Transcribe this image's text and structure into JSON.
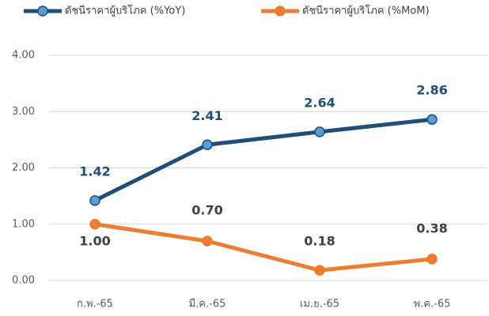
{
  "chart_data": {
    "type": "line",
    "categories": [
      "ก.พ.-65",
      "มี.ค.-65",
      "เม.ย.-65",
      "พ.ค.-65"
    ],
    "series": [
      {
        "name": "ดัชนีราคาผู้บริโภค (%YoY)",
        "color": "#1f4e79",
        "marker_color": "#5b9bd5",
        "values": [
          1.42,
          2.41,
          2.64,
          2.86
        ],
        "value_labels": [
          "1.42",
          "2.41",
          "2.64",
          "2.86"
        ]
      },
      {
        "name": "ดัชนีราคาผู้บริโภค (%MoM)",
        "color": "#ed7d31",
        "marker_color": "#ed7d31",
        "values": [
          1,
          0.7,
          0.18,
          0.38
        ],
        "value_labels": [
          "1.00",
          "0.70",
          "0.18",
          "0.38"
        ]
      }
    ],
    "ylim": [
      0,
      4
    ],
    "yticks": [
      {
        "value": 0,
        "label": "0.00"
      },
      {
        "value": 1,
        "label": "1.00"
      },
      {
        "value": 2,
        "label": "2.00"
      },
      {
        "value": 3,
        "label": "3.00"
      },
      {
        "value": 4,
        "label": "4.00"
      }
    ],
    "grid": true,
    "legend": "top"
  }
}
